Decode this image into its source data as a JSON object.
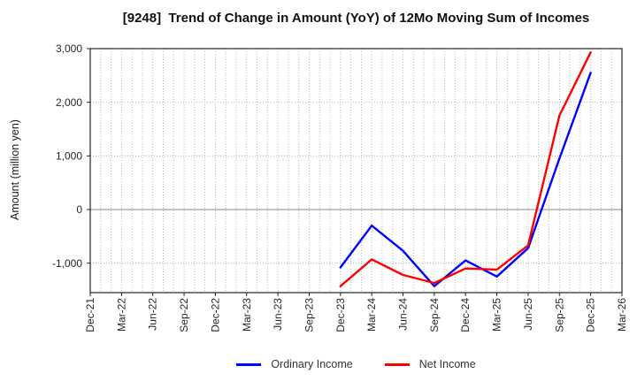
{
  "chart_data": {
    "type": "line",
    "title": "[9248]  Trend of Change in Amount (YoY) of 12Mo Moving Sum of Incomes",
    "ylabel": "Amount (million yen)",
    "xlabel": "",
    "x_tick_labels": [
      "Dec-21",
      "Mar-22",
      "Jun-22",
      "Sep-22",
      "Dec-22",
      "Mar-23",
      "Jun-23",
      "Sep-23",
      "Dec-23",
      "Mar-24",
      "Jun-24",
      "Sep-24",
      "Dec-24",
      "Mar-25",
      "Jun-25",
      "Sep-25",
      "Dec-25",
      "Mar-26"
    ],
    "y_tick_values": [
      -1000,
      0,
      1000,
      2000,
      3000
    ],
    "y_tick_labels": [
      "-1,000",
      "0",
      "1,000",
      "2,000",
      "3,000"
    ],
    "ylim": [
      -1550,
      3000
    ],
    "grid": "on",
    "grid_style": "dotted vertical line each month, dotted horizontal line each 1000, solid line at zero",
    "legend_position": "bottom",
    "series": [
      {
        "name": "Ordinary Income",
        "color": "#0000ff",
        "x_labels": [
          "Dec-23",
          "Mar-24",
          "Jun-24",
          "Sep-24",
          "Dec-24",
          "Mar-25",
          "Jun-25",
          "Sep-25",
          "Dec-25"
        ],
        "values": [
          -1080,
          -300,
          -770,
          -1430,
          -950,
          -1250,
          -720,
          950,
          2550
        ]
      },
      {
        "name": "Net Income",
        "color": "#ff0000",
        "x_labels": [
          "Dec-23",
          "Mar-24",
          "Jun-24",
          "Sep-24",
          "Dec-24",
          "Mar-25",
          "Jun-25",
          "Sep-25",
          "Dec-25"
        ],
        "values": [
          -1430,
          -930,
          -1220,
          -1370,
          -1100,
          -1120,
          -670,
          1750,
          2930
        ]
      }
    ],
    "colors": {
      "background": "#ffffff",
      "frame": "#222222",
      "grid_dotted": "#b0b0b0",
      "zero_line": "#888888",
      "title_text": "#111111",
      "tick_text": "#262626"
    }
  }
}
